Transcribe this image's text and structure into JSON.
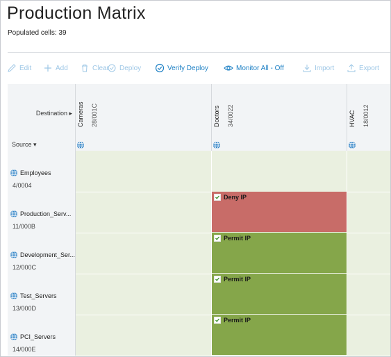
{
  "page": {
    "title": "Production Matrix",
    "populated_cells": "Populated cells: 39"
  },
  "toolbar": {
    "edit": "Edit",
    "add": "Add",
    "clear": "Clear",
    "deploy": "Deploy",
    "verify_deploy": "Verify Deploy",
    "monitor_all": "Monitor All - Off",
    "import": "Import",
    "export": "Export"
  },
  "matrix": {
    "destination_label": "Destination",
    "source_label": "Source",
    "columns": [
      {
        "name": "Cameras",
        "code": "28/001C"
      },
      {
        "name": "Doctors",
        "code": "34/0022"
      },
      {
        "name": "HVAC",
        "code": "18/0012"
      }
    ],
    "rows": [
      {
        "name": "Employees",
        "code": "4/0004",
        "cell_doctors": ""
      },
      {
        "name": "Production_Serv...",
        "code": "11/000B",
        "cell_doctors": "Deny IP"
      },
      {
        "name": "Development_Ser...",
        "code": "12/000C",
        "cell_doctors": "Permit IP"
      },
      {
        "name": "Test_Servers",
        "code": "13/000D",
        "cell_doctors": "Permit IP"
      },
      {
        "name": "PCI_Servers",
        "code": "14/000E",
        "cell_doctors": "Permit IP"
      }
    ]
  },
  "colors": {
    "deny": "#c86c68",
    "permit": "#85a64a",
    "empty_cell": "#eaf0e0",
    "accent": "#1b7fc4"
  }
}
